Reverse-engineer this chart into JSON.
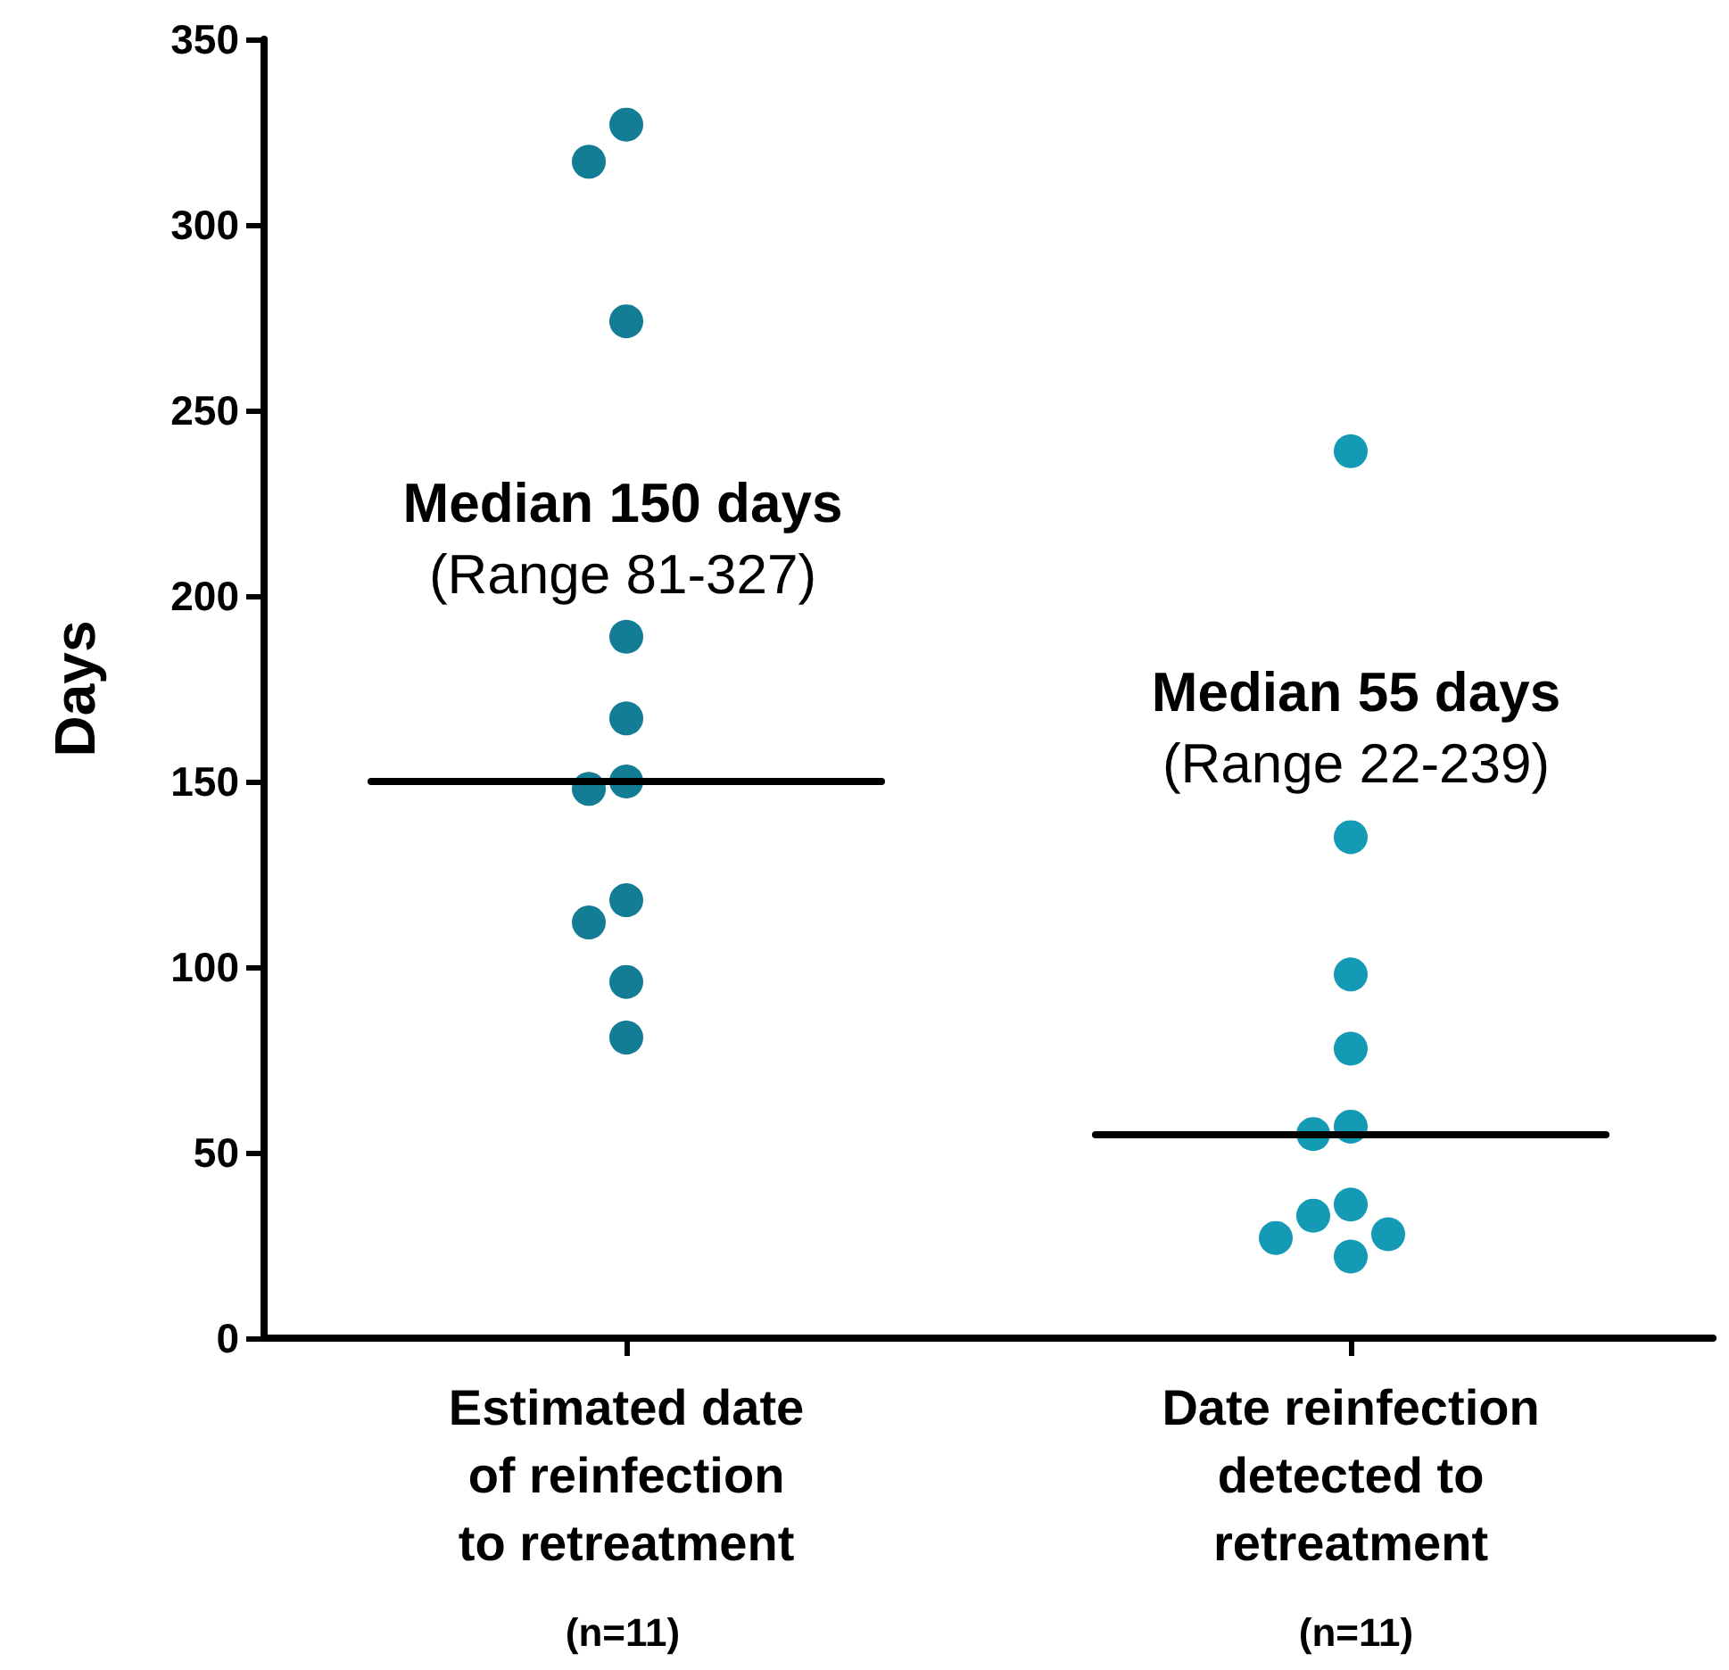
{
  "chart_data": {
    "type": "scatter",
    "ylabel": "Days",
    "categories": [
      "Estimated date\nof reinfection\nto retreatment",
      "Date reinfection\ndetected to\nretreatment"
    ],
    "series": [
      {
        "color": "#137d96",
        "x": [
          "Estimated date\nof reinfection\nto retreatment",
          "Estimated date\nof reinfection\nto retreatment",
          "Estimated date\nof reinfection\nto retreatment",
          "Estimated date\nof reinfection\nto retreatment",
          "Estimated date\nof reinfection\nto retreatment",
          "Estimated date\nof reinfection\nto retreatment",
          "Estimated date\nof reinfection\nto retreatment",
          "Estimated date\nof reinfection\nto retreatment",
          "Estimated date\nof reinfection\nto retreatment",
          "Estimated date\nof reinfection\nto retreatment",
          "Estimated date\nof reinfection\nto retreatment"
        ],
        "values": [
          327,
          317,
          274,
          189,
          167,
          150,
          148,
          118,
          112,
          96,
          81
        ]
      },
      {
        "color": "#159ab5",
        "x": [
          "Date reinfection\ndetected to\nretreatment",
          "Date reinfection\ndetected to\nretreatment",
          "Date reinfection\ndetected to\nretreatment",
          "Date reinfection\ndetected to\nretreatment",
          "Date reinfection\ndetected to\nretreatment",
          "Date reinfection\ndetected to\nretreatment",
          "Date reinfection\ndetected to\nretreatment",
          "Date reinfection\ndetected to\nretreatment",
          "Date reinfection\ndetected to\nretreatment",
          "Date reinfection\ndetected to\nretreatment",
          "Date reinfection\ndetected to\nretreatment"
        ],
        "values": [
          239,
          135,
          98,
          78,
          57,
          55,
          36,
          33,
          28,
          27,
          22
        ]
      }
    ],
    "ref_lines": [
      {
        "axis": "y",
        "value": 150,
        "color": "#000000"
      },
      {
        "axis": "y",
        "value": 55,
        "color": "#000000"
      }
    ],
    "annotations": [
      "Median 150 days\n(Range 81-327)",
      "Median 55 days\n(Range 22-239)",
      "(n=11)",
      "(n=11)"
    ],
    "ylim": [
      0,
      350
    ],
    "yticks": [
      0,
      50,
      100,
      150,
      200,
      250,
      300,
      350
    ],
    "grid": false,
    "marker": "circle"
  }
}
